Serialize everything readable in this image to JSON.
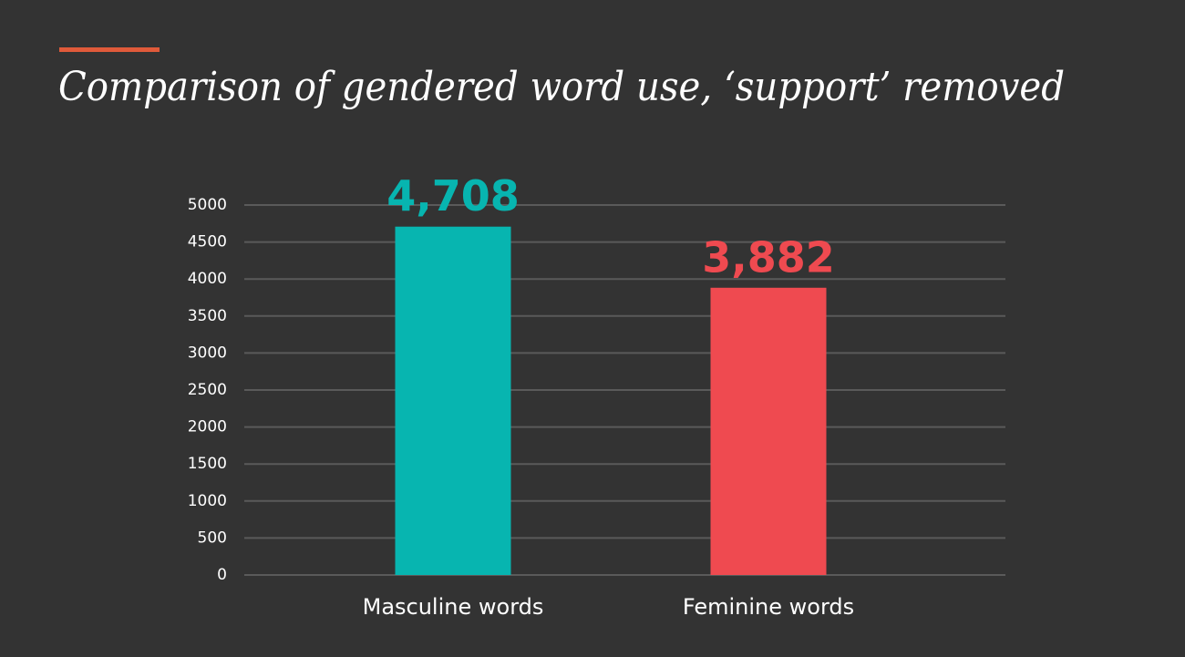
{
  "chart_data": {
    "type": "bar",
    "title": "Comparison of gendered word use, ‘support’ removed",
    "categories": [
      "Masculine words",
      "Feminine words"
    ],
    "values": [
      4708,
      3882
    ],
    "value_labels": [
      "4,708",
      "3,882"
    ],
    "colors": [
      "#07b5b0",
      "#ef4a50"
    ],
    "ylim": [
      0,
      5000
    ],
    "yticks": [
      0,
      500,
      1000,
      1500,
      2000,
      2500,
      3000,
      3500,
      4000,
      4500,
      5000
    ],
    "grid": true
  }
}
